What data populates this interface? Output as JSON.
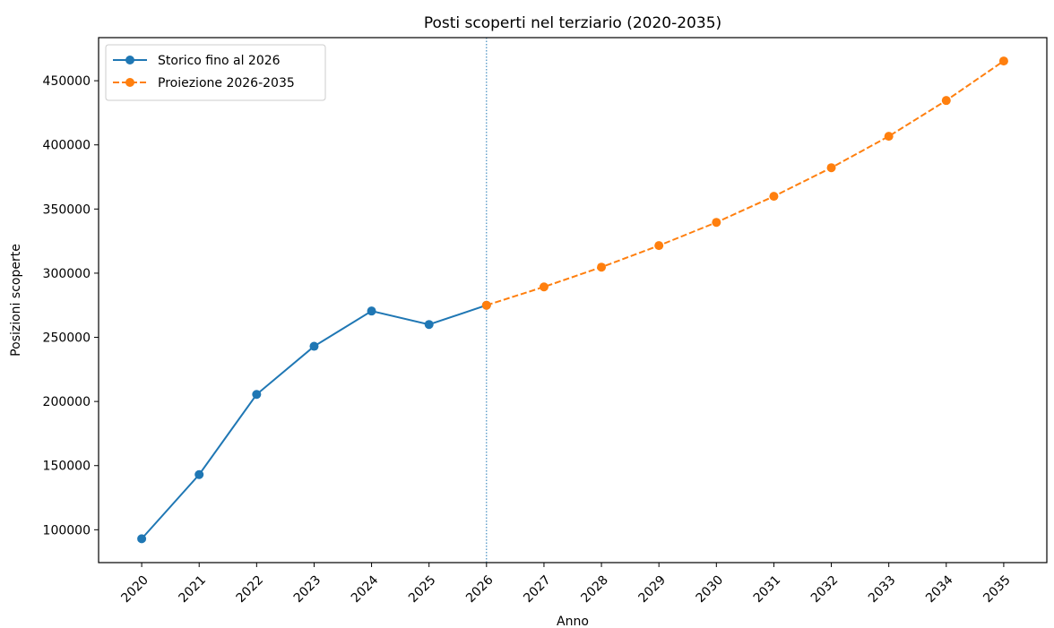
{
  "chart_data": {
    "type": "line",
    "title": "Posti scoperti nel terziario (2020-2035)",
    "x_label": "Anno",
    "y_label": "Posizioni scoperte",
    "series": [
      {
        "name": "Storico fino al 2026",
        "color": "#1f77b4",
        "dash": false,
        "x": [
          2020,
          2021,
          2022,
          2023,
          2024,
          2025,
          2026
        ],
        "values": [
          93000,
          143000,
          205500,
          243000,
          270500,
          260000,
          275000
        ]
      },
      {
        "name": "Proiezione 2026-2035",
        "color": "#ff7f0e",
        "dash": true,
        "x": [
          2026,
          2027,
          2028,
          2029,
          2030,
          2031,
          2032,
          2033,
          2034,
          2035
        ],
        "values": [
          275000,
          289300,
          304700,
          321500,
          339600,
          359900,
          382200,
          406700,
          434600,
          465400
        ]
      }
    ],
    "vline": 2026,
    "xlim": [
      2019.25,
      2035.75
    ],
    "xticks": [
      2020,
      2021,
      2022,
      2023,
      2024,
      2025,
      2026,
      2027,
      2028,
      2029,
      2030,
      2031,
      2032,
      2033,
      2034,
      2035
    ],
    "ylim": [
      74400,
      483600
    ],
    "yticks": [
      100000,
      150000,
      200000,
      250000,
      300000,
      350000,
      400000,
      450000
    ],
    "grid": false,
    "legend": "upper left"
  }
}
